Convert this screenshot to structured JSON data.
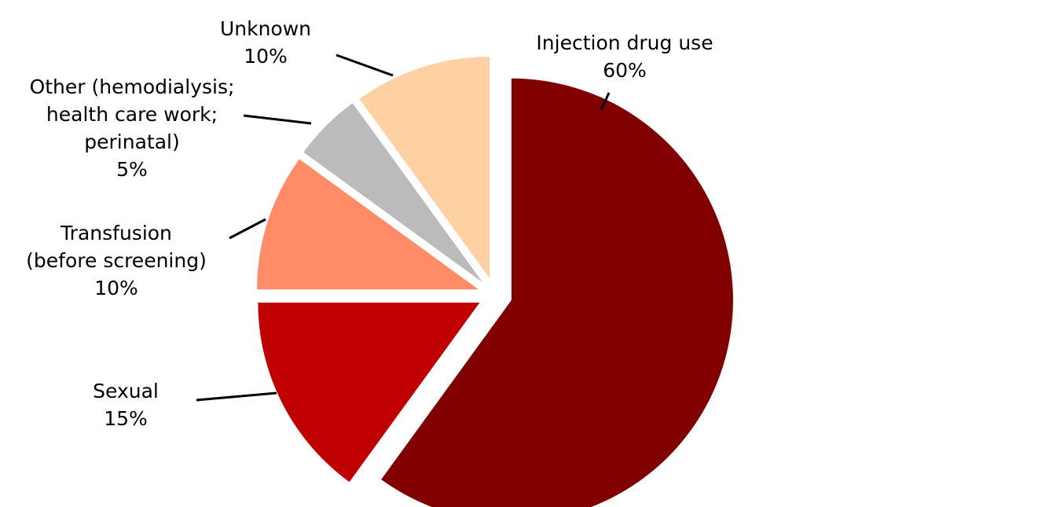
{
  "chart_data": {
    "type": "pie",
    "title": "",
    "start_angle_deg": 90,
    "direction": "clockwise",
    "exploded": true,
    "slices": [
      {
        "lines": [
          "Injection drug use",
          "60%"
        ],
        "value": 60,
        "color": "#800000"
      },
      {
        "lines": [
          "Sexual",
          "15%"
        ],
        "value": 15,
        "color": "#C00000"
      },
      {
        "lines": [
          "Transfusion",
          "(before screening)",
          "10%"
        ],
        "value": 10,
        "color": "#FF8C66"
      },
      {
        "lines": [
          "Other (hemodialysis;",
          "health care work;",
          "perinatal)",
          "5%"
        ],
        "value": 5,
        "color": "#BBBBBB"
      },
      {
        "lines": [
          "Unknown",
          "10%"
        ],
        "value": 10,
        "color": "#FFD0A2"
      }
    ]
  }
}
